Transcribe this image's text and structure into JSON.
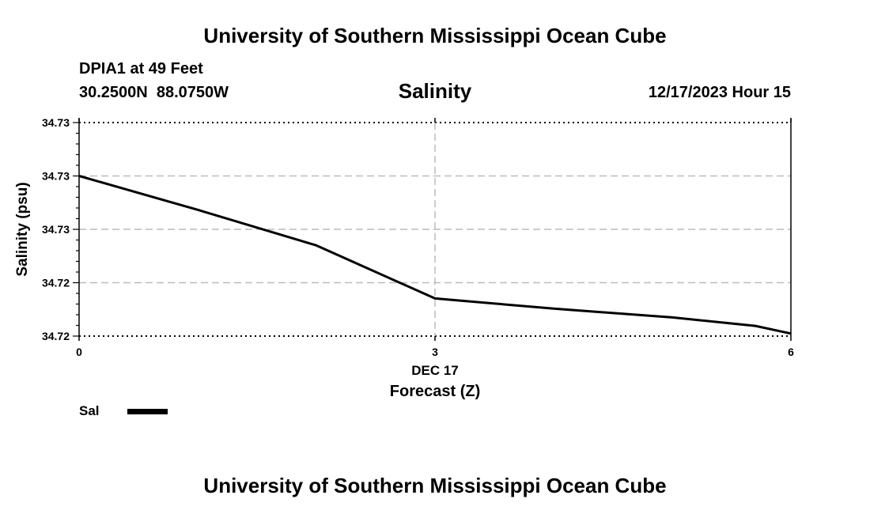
{
  "header": {
    "title": "University of Southern Mississippi Ocean Cube",
    "station": "DPIA1 at 49 Feet",
    "coords": "30.2500N  88.0750W",
    "datetime": "12/17/2023 Hour 15"
  },
  "footer": {
    "title": "University of Southern Mississippi Ocean Cube"
  },
  "legend": {
    "label": "Sal",
    "color": "#000000"
  },
  "chart_data": {
    "type": "line",
    "title": "Salinity",
    "xlabel": "Forecast (Z)",
    "ylabel": "Salinity (psu)",
    "x_date_label": "DEC 17",
    "xlim": [
      0,
      6
    ],
    "ylim": [
      34.72,
      34.7326
    ],
    "x_ticks": [
      0,
      3,
      6
    ],
    "x_tick_labels": [
      "0",
      "3",
      "6"
    ],
    "y_ticks": [
      34.72,
      34.72315,
      34.7263,
      34.72945,
      34.7326
    ],
    "y_tick_labels": [
      "34.72",
      "34.72",
      "34.73",
      "34.73",
      "34.73"
    ],
    "grid": true,
    "series": [
      {
        "name": "Sal",
        "x": [
          0,
          1,
          2,
          3,
          4,
          5,
          5.7,
          6
        ],
        "y": [
          34.72945,
          34.72745,
          34.72535,
          34.72222,
          34.72162,
          34.7211,
          34.7206,
          34.72015
        ]
      }
    ]
  }
}
